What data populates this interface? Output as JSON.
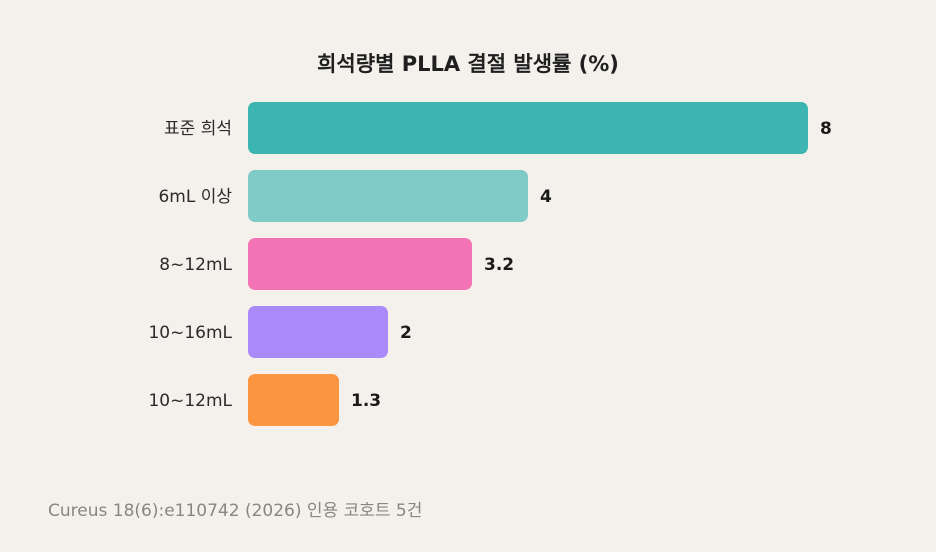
{
  "chart_data": {
    "type": "bar",
    "orientation": "horizontal",
    "title": "희석량별 PLLA 결절 발생률 (%)",
    "categories": [
      "표준 희석",
      "6mL 이상",
      "8~12mL",
      "10~16mL",
      "10~12mL"
    ],
    "values": [
      8,
      4,
      3.2,
      2,
      1.3
    ],
    "value_labels": [
      "8",
      "4",
      "3.2",
      "2",
      "1.3"
    ],
    "colors": [
      "#3db5b3",
      "#80cbc8",
      "#f274b6",
      "#a98af8",
      "#fb953f"
    ],
    "xlim": [
      0,
      8
    ],
    "grid": false,
    "legend": "none"
  },
  "source_note": "Cureus 18(6):e110742 (2026) 인용 코호트 5건"
}
